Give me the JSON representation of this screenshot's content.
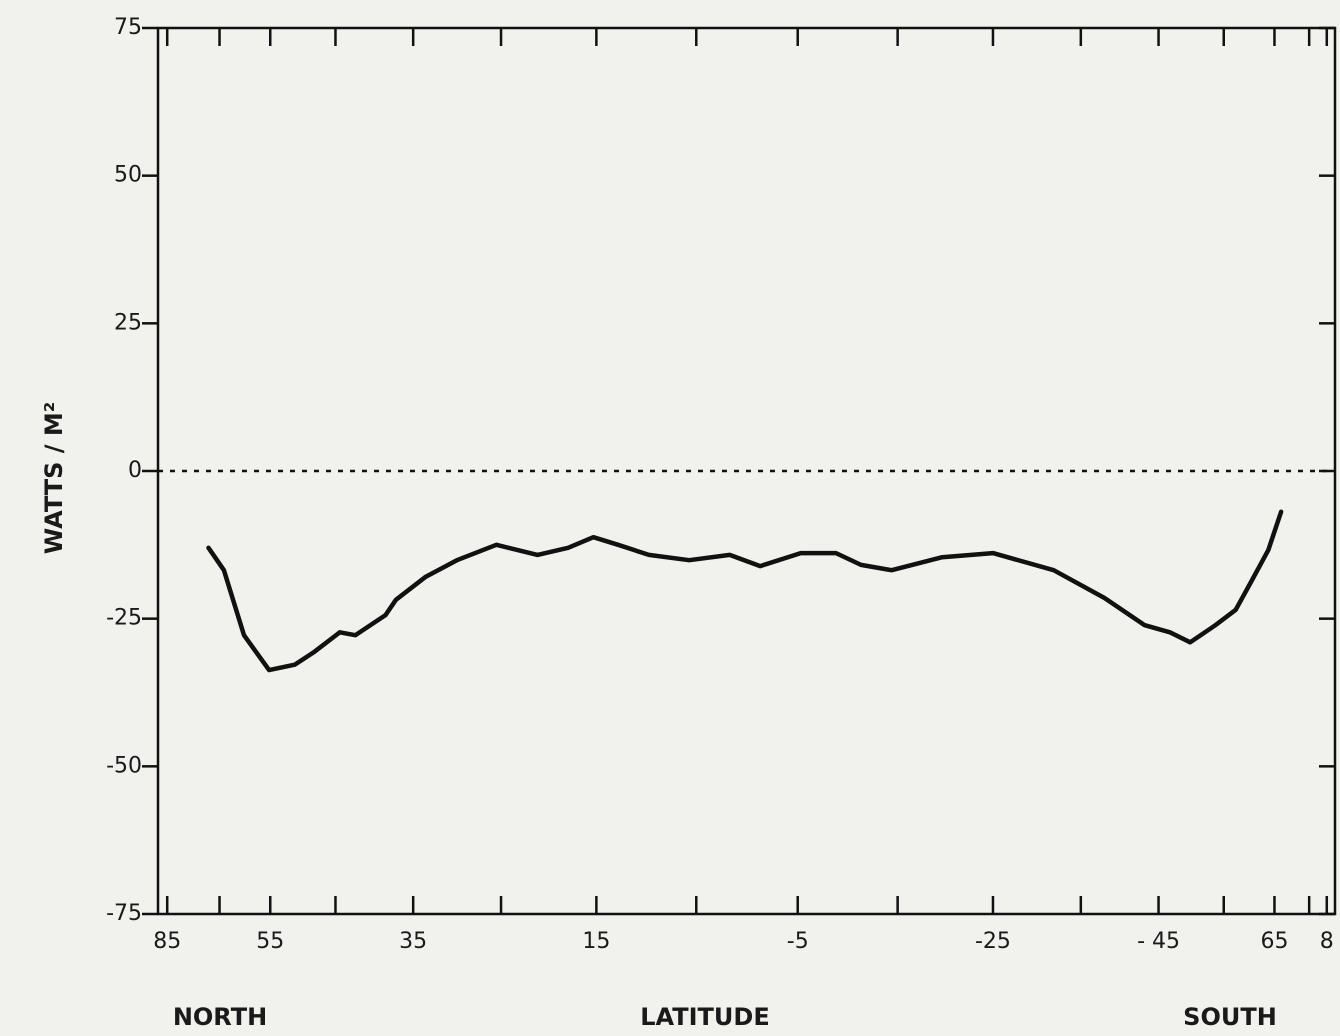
{
  "chart_data": {
    "type": "line",
    "y_label": "WATTS / M²",
    "x_label": "LATITUDE",
    "x_left_label": "NORTH",
    "x_right_label": "SOUTH",
    "xscale": "sine",
    "xlim": [
      90,
      -90
    ],
    "ylim": [
      -75,
      75
    ],
    "xticks": [
      85,
      55,
      35,
      15,
      -5,
      -25,
      {
        "value": -45,
        "label": "- 45"
      },
      {
        "value": -65,
        "label": "65"
      },
      {
        "value": -85,
        "label": "8"
      }
    ],
    "xminorticks": [
      65,
      45,
      25,
      5,
      -15,
      -35,
      -55,
      -75
    ],
    "yticks": [
      75,
      50,
      25,
      0,
      -25,
      -50,
      -75
    ],
    "zero_line": true,
    "color": "#111111",
    "x": [
      67.7,
      64.0,
      59.8,
      55.2,
      51.0,
      48.0,
      44.4,
      42.3,
      38.4,
      37.1,
      33.5,
      29.9,
      25.5,
      21.1,
      17.9,
      15.3,
      12.8,
      9.7,
      5.7,
      1.7,
      -1.3,
      -5.3,
      -8.8,
      -11.3,
      -14.4,
      -19.6,
      -25.0,
      -31.8,
      -37.9,
      -43.1,
      -46.6,
      -49.6,
      -53.6,
      -57.1,
      -60.0,
      -63.6,
      -66.6
    ],
    "values": [
      -13.0,
      -16.8,
      -27.8,
      -33.7,
      -32.8,
      -30.6,
      -27.3,
      -27.8,
      -24.4,
      -21.8,
      -17.9,
      -15.1,
      -12.5,
      -14.2,
      -13.0,
      -11.2,
      -12.5,
      -14.2,
      -15.1,
      -14.2,
      -16.1,
      -13.9,
      -13.9,
      -15.9,
      -16.8,
      -14.6,
      -13.9,
      -16.8,
      -21.5,
      -26.1,
      -27.3,
      -29.0,
      -26.1,
      -23.5,
      -18.8,
      -13.4,
      -6.9
    ]
  }
}
